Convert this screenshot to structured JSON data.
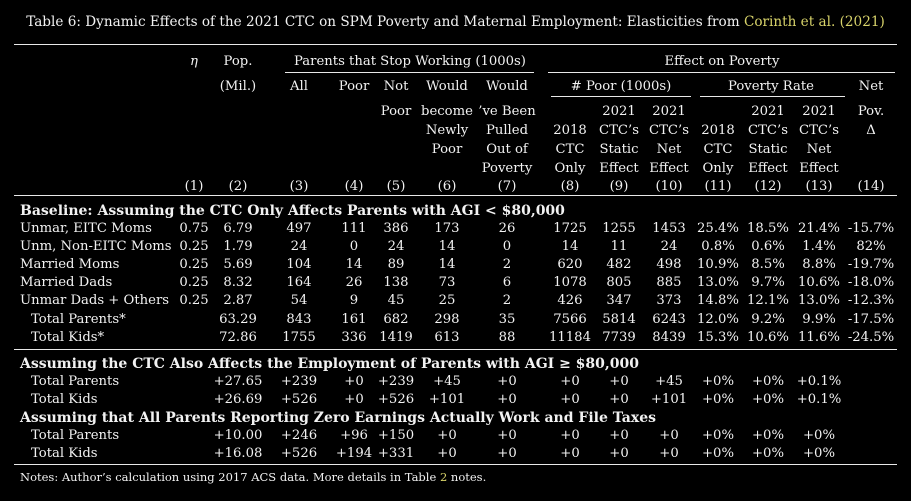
{
  "caption": {
    "text": "Table 6: Dynamic Effects of the 2021 CTC on SPM Poverty and Maternal Employment: Elasticities from ",
    "link": "Corinth et al. (2021)"
  },
  "headers": {
    "eta": "η",
    "pop": [
      "Pop.",
      "(Mil.)"
    ],
    "parents_stop": "Parents that Stop Working (1000s)",
    "effect_poverty": "Effect on Poverty",
    "all": "All",
    "poor": "Poor",
    "not_poor": [
      "Not",
      "Poor"
    ],
    "would_become": [
      "Would",
      "become",
      "Newly",
      "Poor"
    ],
    "would_pulled": [
      "Would",
      "’ve Been",
      "Pulled",
      "Out of",
      "Poverty"
    ],
    "num_poor": "# Poor (1000s)",
    "poverty_rate": "Poverty Rate",
    "net_pov": [
      "Net",
      "Pov.",
      "Δ"
    ],
    "c2018_np": [
      "2018",
      "CTC",
      "Only"
    ],
    "c2021_static_np": [
      "2021",
      "CTC’s",
      "Static",
      "Effect"
    ],
    "c2021_net_np": [
      "2021",
      "CTC’s",
      "Net",
      "Effect"
    ],
    "c2018_pr": [
      "2018",
      "CTC",
      "Only"
    ],
    "c2021_static_pr": [
      "2021",
      "CTC’s",
      "Static",
      "Effect"
    ],
    "c2021_net_pr": [
      "2021",
      "CTC’s",
      "Net",
      "Effect"
    ],
    "col_numbers": [
      "(1)",
      "(2)",
      "(3)",
      "(4)",
      "(5)",
      "(6)",
      "(7)",
      "(8)",
      "(9)",
      "(10)",
      "(11)",
      "(12)",
      "(13)",
      "(14)"
    ]
  },
  "sections": [
    {
      "title": "Baseline: Assuming the CTC Only Affects Parents with AGI < $80,000",
      "rows": [
        {
          "label": "Unmar, EITC Moms",
          "cells": [
            "0.75",
            "6.79",
            "497",
            "111",
            "386",
            "173",
            "26",
            "1725",
            "1255",
            "1453",
            "25.4%",
            "18.5%",
            "21.4%",
            "-15.7%"
          ]
        },
        {
          "label": "Unm, Non-EITC Moms",
          "cells": [
            "0.25",
            "1.79",
            "24",
            "0",
            "24",
            "14",
            "0",
            "14",
            "11",
            "24",
            "0.8%",
            "0.6%",
            "1.4%",
            "82%"
          ]
        },
        {
          "label": "Married Moms",
          "cells": [
            "0.25",
            "5.69",
            "104",
            "14",
            "89",
            "14",
            "2",
            "620",
            "482",
            "498",
            "10.9%",
            "8.5%",
            "8.8%",
            "-19.7%"
          ]
        },
        {
          "label": "Married Dads",
          "cells": [
            "0.25",
            "8.32",
            "164",
            "26",
            "138",
            "73",
            "6",
            "1078",
            "805",
            "885",
            "13.0%",
            "9.7%",
            "10.6%",
            "-18.0%"
          ]
        },
        {
          "label": "Unmar Dads + Others",
          "cells": [
            "0.25",
            "2.87",
            "54",
            "9",
            "45",
            "25",
            "2",
            "426",
            "347",
            "373",
            "14.8%",
            "12.1%",
            "13.0%",
            "-12.3%"
          ]
        },
        {
          "label": "Total Parents*",
          "cells": [
            "",
            "63.29",
            "843",
            "161",
            "682",
            "298",
            "35",
            "7566",
            "5814",
            "6243",
            "12.0%",
            "9.2%",
            "9.9%",
            "-17.5%"
          ]
        },
        {
          "label": "Total Kids*",
          "cells": [
            "",
            "72.86",
            "1755",
            "336",
            "1419",
            "613",
            "88",
            "11184",
            "7739",
            "8439",
            "15.3%",
            "10.6%",
            "11.6%",
            "-24.5%"
          ]
        }
      ]
    },
    {
      "title": "Assuming the CTC Also Affects the Employment of Parents with AGI ≥ $80,000",
      "rows": [
        {
          "label": "Total Parents",
          "cells": [
            "",
            "+27.65",
            "+239",
            "+0",
            "+239",
            "+45",
            "+0",
            "+0",
            "+0",
            "+45",
            "+0%",
            "+0%",
            "+0.1%",
            ""
          ]
        },
        {
          "label": "Total Kids",
          "cells": [
            "",
            "+26.69",
            "+526",
            "+0",
            "+526",
            "+101",
            "+0",
            "+0",
            "+0",
            "+101",
            "+0%",
            "+0%",
            "+0.1%",
            ""
          ]
        }
      ]
    },
    {
      "title": "Assuming that All Parents Reporting Zero Earnings Actually Work and File Taxes",
      "rows": [
        {
          "label": "Total Parents",
          "cells": [
            "",
            "+10.00",
            "+246",
            "+96",
            "+150",
            "+0",
            "+0",
            "+0",
            "+0",
            "+0",
            "+0%",
            "+0%",
            "+0%",
            ""
          ]
        },
        {
          "label": "Total Kids",
          "cells": [
            "",
            "+16.08",
            "+526",
            "+194",
            "+331",
            "+0",
            "+0",
            "+0",
            "+0",
            "+0",
            "+0%",
            "+0%",
            "+0%",
            ""
          ]
        }
      ]
    }
  ],
  "notes": {
    "text": "Notes: Author’s calculation using 2017 ACS data. More details in Table ",
    "link": "2",
    "tail": " notes."
  }
}
